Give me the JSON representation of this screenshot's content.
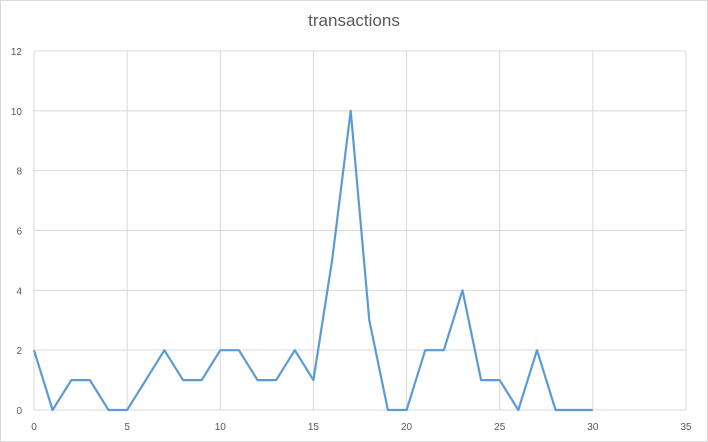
{
  "chart_data": {
    "type": "line",
    "title": "transactions",
    "xlabel": "",
    "ylabel": "",
    "xlim": [
      0,
      35
    ],
    "ylim": [
      0,
      12
    ],
    "x_ticks": [
      0,
      5,
      10,
      15,
      20,
      25,
      30,
      35
    ],
    "y_ticks": [
      0,
      2,
      4,
      6,
      8,
      10,
      12
    ],
    "grid": true,
    "legend": "none",
    "series": [
      {
        "color": "#5b9bd5",
        "x": [
          0,
          1,
          2,
          3,
          4,
          5,
          6,
          7,
          8,
          9,
          10,
          11,
          12,
          13,
          14,
          15,
          16,
          17,
          18,
          19,
          20,
          21,
          22,
          23,
          24,
          25,
          26,
          27,
          28,
          29,
          30
        ],
        "y": [
          2,
          0,
          1,
          1,
          0,
          0,
          1,
          2,
          1,
          1,
          2,
          2,
          1,
          1,
          2,
          1,
          5,
          10,
          3,
          0,
          0,
          2,
          2,
          4,
          1,
          1,
          0,
          2,
          0,
          0,
          0
        ]
      }
    ]
  }
}
